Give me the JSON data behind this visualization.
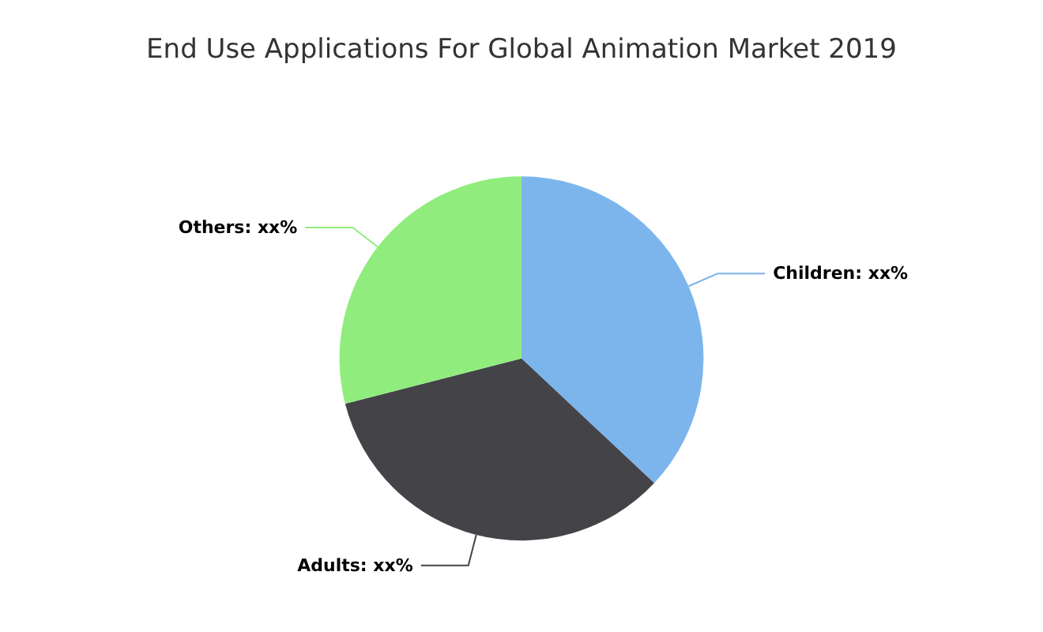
{
  "chart_data": {
    "type": "pie",
    "title": "End Use Applications For Global Animation Market 2019",
    "categories": [
      "Children",
      "Adults",
      "Others"
    ],
    "values": [
      37,
      34,
      29
    ],
    "colors": [
      "#7cb5ec",
      "#434348",
      "#90ed7d"
    ],
    "value_labels": [
      "xx%",
      "xx%",
      "xx%"
    ],
    "legend": false
  }
}
